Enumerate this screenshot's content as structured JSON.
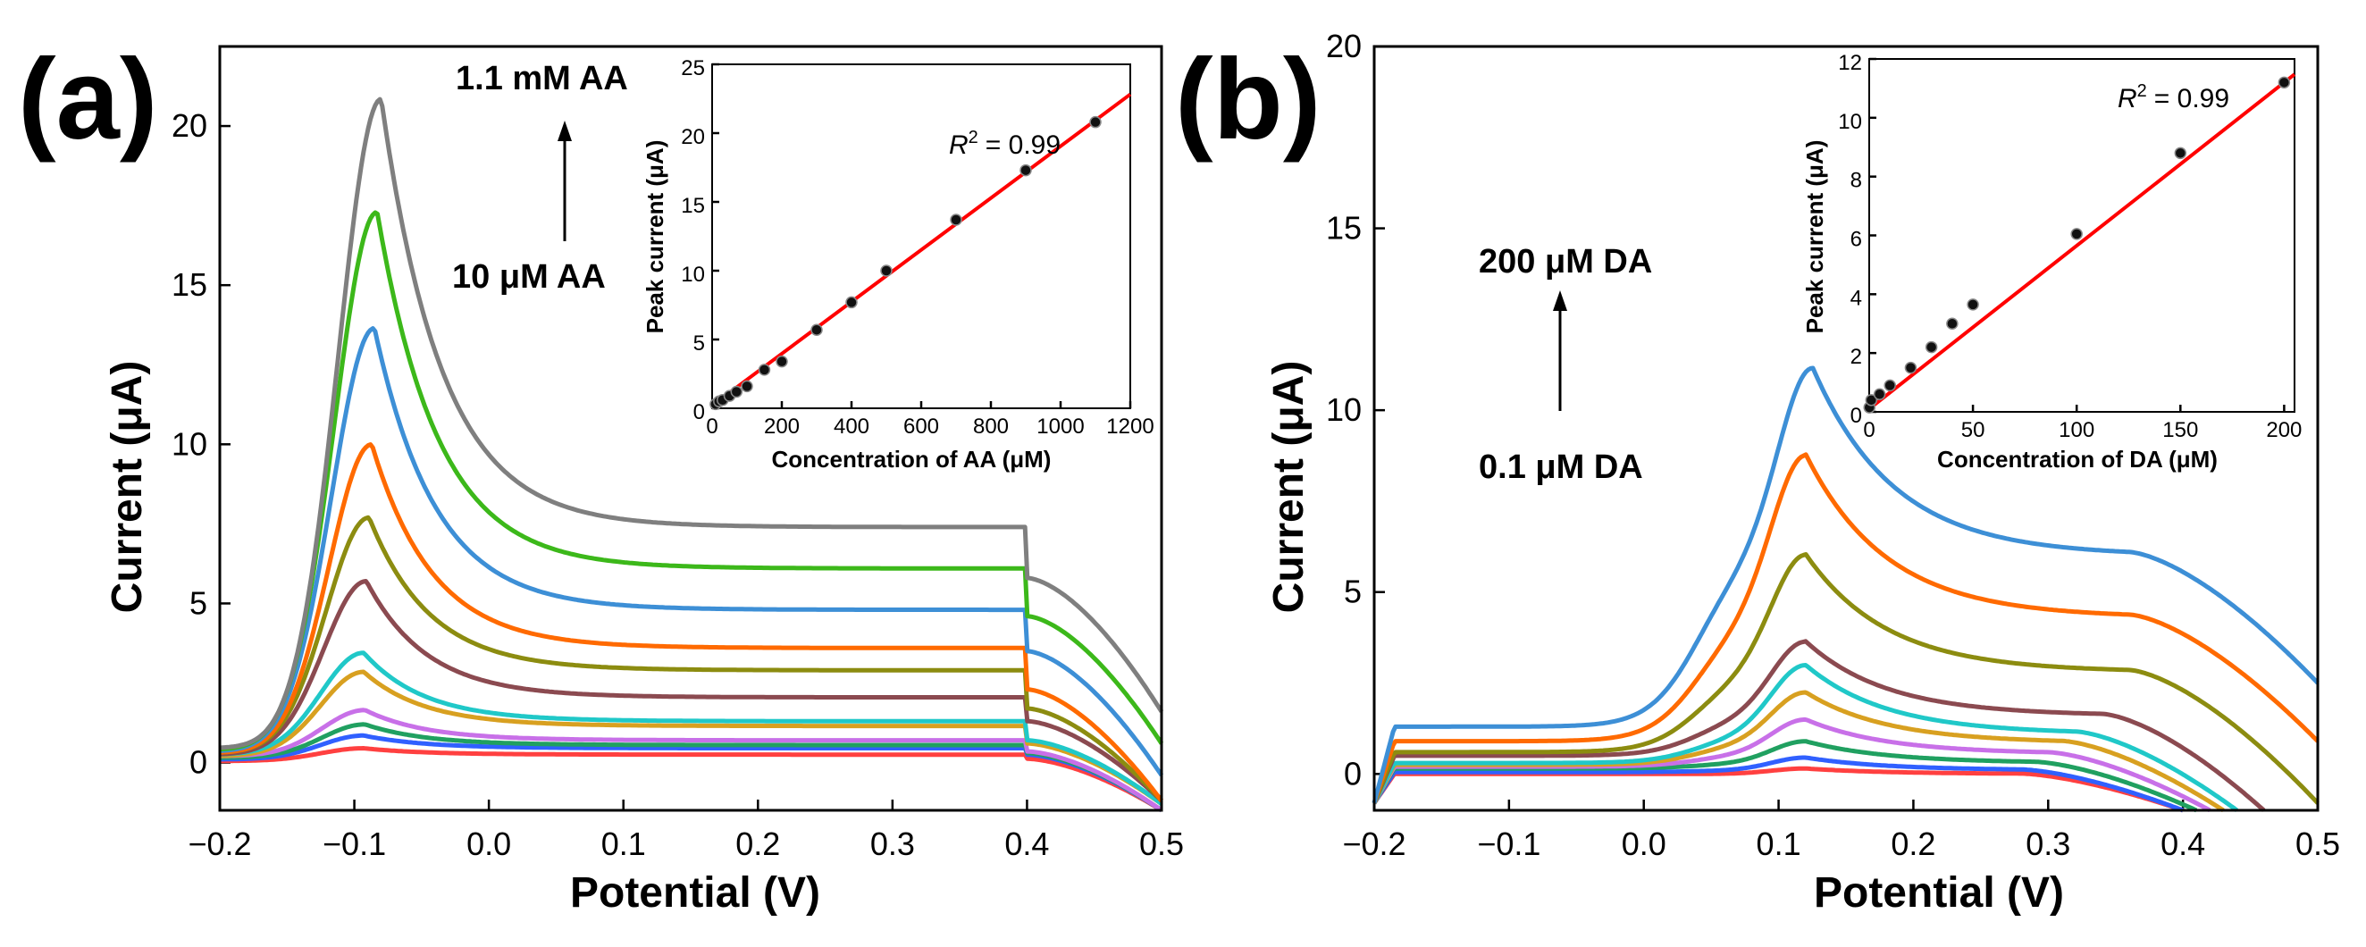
{
  "chart_data": [
    {
      "type": "line",
      "panel_label": "(a)",
      "xlabel": "Potential (V)",
      "ylabel": "Current (μA)",
      "xlim": [
        -0.2,
        0.5
      ],
      "ylim": [
        -1.5,
        22.5
      ],
      "xticks": [
        -0.2,
        -0.1,
        0.0,
        0.1,
        0.2,
        0.3,
        0.4,
        0.5
      ],
      "xtick_labels": [
        "−0.2",
        "−0.1",
        "0.0",
        "0.1",
        "0.2",
        "0.3",
        "0.4",
        "0.5"
      ],
      "yticks": [
        0,
        5,
        10,
        15,
        20
      ],
      "ytick_labels": [
        "0",
        "5",
        "10",
        "15",
        "20"
      ],
      "annotations": {
        "top": "1.1 mM AA",
        "bottom": "10 μM AA"
      },
      "series": [
        {
          "name": "s1",
          "color": "#ff4040",
          "peak_x": -0.093,
          "peak_y": 0.45,
          "base": 0.1,
          "shoulder": 0.3,
          "mid": 0.25,
          "late": 0.12,
          "end": -1.5,
          "start": 0.05
        },
        {
          "name": "s2",
          "color": "#3060ff",
          "peak_x": -0.093,
          "peak_y": 0.85,
          "base": 0.25,
          "shoulder": 0.6,
          "mid": 0.45,
          "late": 0.25,
          "end": -1.5,
          "start": 0.1
        },
        {
          "name": "s3",
          "color": "#20a060",
          "peak_x": -0.092,
          "peak_y": 1.2,
          "base": 0.3,
          "shoulder": 0.75,
          "mid": 0.55,
          "late": 0.3,
          "end": -1.5,
          "start": 0.15
        },
        {
          "name": "s4",
          "color": "#c870e8",
          "peak_x": -0.092,
          "peak_y": 1.65,
          "base": 0.35,
          "shoulder": 0.95,
          "mid": 0.7,
          "late": 0.35,
          "end": -1.5,
          "start": 0.2
        },
        {
          "name": "s5",
          "color": "#d8a020",
          "peak_x": -0.093,
          "peak_y": 2.85,
          "base": 0.4,
          "shoulder": 1.5,
          "mid": 1.15,
          "late": 0.6,
          "end": -1.3,
          "start": 0.2
        },
        {
          "name": "s6",
          "color": "#20c8c8",
          "peak_x": -0.093,
          "peak_y": 3.45,
          "base": 0.45,
          "shoulder": 1.8,
          "mid": 1.3,
          "late": 0.7,
          "end": -1.3,
          "start": 0.25
        },
        {
          "name": "s7",
          "color": "#8b4a50",
          "peak_x": -0.091,
          "peak_y": 5.7,
          "base": 0.5,
          "shoulder": 2.85,
          "mid": 2.05,
          "late": 1.3,
          "end": -1.2,
          "start": 0.25
        },
        {
          "name": "s8",
          "color": "#8c8c10",
          "peak_x": -0.089,
          "peak_y": 7.7,
          "base": 0.5,
          "shoulder": 3.9,
          "mid": 2.9,
          "late": 1.7,
          "end": -1.2,
          "start": 0.3
        },
        {
          "name": "s9",
          "color": "#ff6a00",
          "peak_x": -0.087,
          "peak_y": 10.0,
          "base": 0.5,
          "shoulder": 5.0,
          "mid": 3.6,
          "late": 2.3,
          "end": -1.2,
          "start": 0.3
        },
        {
          "name": "s10",
          "color": "#3d8fd6",
          "peak_x": -0.085,
          "peak_y": 13.65,
          "base": 0.5,
          "shoulder": 6.7,
          "mid": 4.8,
          "late": 3.5,
          "end": -0.4,
          "start": 0.35
        },
        {
          "name": "s11",
          "color": "#3cb81a",
          "peak_x": -0.083,
          "peak_y": 17.3,
          "base": 0.5,
          "shoulder": 8.7,
          "mid": 6.1,
          "late": 4.6,
          "end": 0.6,
          "start": 0.4
        },
        {
          "name": "s12",
          "color": "#7f7f7f",
          "peak_x": -0.08,
          "peak_y": 20.85,
          "base": 0.5,
          "shoulder": 11.0,
          "mid": 7.4,
          "late": 5.8,
          "end": 1.6,
          "start": 0.45
        }
      ],
      "inset": {
        "type": "scatter",
        "xlabel": "Concentration of AA (μM)",
        "ylabel": "Peak current (μA)",
        "xlim": [
          0,
          1200
        ],
        "ylim": [
          0,
          25
        ],
        "xticks": [
          0,
          200,
          400,
          600,
          800,
          1000,
          1200
        ],
        "xtick_labels": [
          "0",
          "200",
          "400",
          "600",
          "800",
          "1000",
          "1200"
        ],
        "yticks": [
          0,
          5,
          10,
          15,
          20,
          25
        ],
        "ytick_labels": [
          "0",
          "5",
          "10",
          "15",
          "20",
          "25"
        ],
        "r2_label": "R",
        "r2_value": "= 0.99",
        "fit": {
          "slope": 0.01885,
          "intercept": 0.2,
          "color": "#ff0000"
        },
        "points": {
          "x": [
            10,
            20,
            30,
            50,
            70,
            100,
            150,
            200,
            300,
            400,
            500,
            700,
            900,
            1100
          ],
          "y": [
            0.3,
            0.5,
            0.6,
            0.9,
            1.2,
            1.6,
            2.8,
            3.4,
            5.7,
            7.7,
            10.0,
            13.7,
            17.3,
            20.8
          ]
        }
      }
    },
    {
      "type": "line",
      "panel_label": "(b)",
      "xlabel": "Potential (V)",
      "ylabel": "Current (μA)",
      "xlim": [
        -0.2,
        0.5
      ],
      "ylim": [
        -1.0,
        20.0
      ],
      "xticks": [
        -0.2,
        -0.1,
        0.0,
        0.1,
        0.2,
        0.3,
        0.4,
        0.5
      ],
      "xtick_labels": [
        "−0.2",
        "−0.1",
        "0.0",
        "0.1",
        "0.2",
        "0.3",
        "0.4",
        "0.5"
      ],
      "yticks": [
        0,
        5,
        10,
        15,
        20
      ],
      "ytick_labels": [
        "0",
        "5",
        "10",
        "15",
        "20"
      ],
      "annotations": {
        "top": "200 μM DA",
        "bottom": "0.1 μM DA"
      },
      "series": [
        {
          "name": "s1",
          "color": "#ff4040",
          "peak_x": 0.12,
          "peak_y": 0.15,
          "base": 0.0,
          "shoulder": 0.0,
          "end": -1.0,
          "end_x": 0.4,
          "start": -0.8
        },
        {
          "name": "s2",
          "color": "#3060ff",
          "peak_x": 0.12,
          "peak_y": 0.45,
          "base": 0.05,
          "shoulder": 0.1,
          "end": -1.0,
          "end_x": 0.4,
          "start": -0.8
        },
        {
          "name": "s3",
          "color": "#20a060",
          "peak_x": 0.12,
          "peak_y": 0.9,
          "base": 0.15,
          "shoulder": 0.3,
          "end": -1.0,
          "end_x": 0.41,
          "start": -0.8
        },
        {
          "name": "s4",
          "color": "#c870e8",
          "peak_x": 0.12,
          "peak_y": 1.5,
          "base": 0.2,
          "shoulder": 0.55,
          "end": -1.0,
          "end_x": 0.42,
          "start": -0.8
        },
        {
          "name": "s5",
          "color": "#d8a020",
          "peak_x": 0.12,
          "peak_y": 2.25,
          "base": 0.25,
          "shoulder": 0.85,
          "end": -1.0,
          "end_x": 0.43,
          "start": -0.8
        },
        {
          "name": "s6",
          "color": "#20c8c8",
          "peak_x": 0.12,
          "peak_y": 3.0,
          "base": 0.3,
          "shoulder": 1.1,
          "end": -1.0,
          "end_x": 0.44,
          "start": -0.8
        },
        {
          "name": "s7",
          "color": "#8b4a50",
          "peak_x": 0.12,
          "peak_y": 3.65,
          "base": 0.5,
          "shoulder": 1.6,
          "end": -1.0,
          "end_x": 0.46,
          "start": -0.8
        },
        {
          "name": "s8",
          "color": "#8c8c10",
          "peak_x": 0.12,
          "peak_y": 6.05,
          "base": 0.6,
          "shoulder": 2.8,
          "end": -0.8,
          "end_x": 0.5,
          "start": -0.8
        },
        {
          "name": "s9",
          "color": "#ff6a00",
          "peak_x": 0.12,
          "peak_y": 8.8,
          "base": 0.9,
          "shoulder": 4.3,
          "end": 0.9,
          "end_x": 0.5,
          "start": -0.8
        },
        {
          "name": "s10",
          "color": "#3d8fd6",
          "peak_x": 0.125,
          "peak_y": 11.2,
          "base": 1.3,
          "shoulder": 6.0,
          "end": 2.5,
          "end_x": 0.5,
          "start": -0.8
        }
      ],
      "inset": {
        "type": "scatter",
        "xlabel": "Concentration of DA (μM)",
        "ylabel": "Peak current (μA)",
        "xlim": [
          0,
          205
        ],
        "ylim": [
          0,
          12
        ],
        "xticks": [
          0,
          50,
          100,
          150,
          200
        ],
        "xtick_labels": [
          "0",
          "50",
          "100",
          "150",
          "200"
        ],
        "yticks": [
          0,
          2,
          4,
          6,
          8,
          10,
          12
        ],
        "ytick_labels": [
          "0",
          "2",
          "4",
          "6",
          "8",
          "10",
          "12"
        ],
        "r2_label": "R",
        "r2_value": "= 0.99",
        "fit": {
          "slope": 0.0555,
          "intercept": 0.1,
          "color": "#ff0000"
        },
        "points": {
          "x": [
            0.1,
            1,
            5,
            10,
            20,
            30,
            40,
            50,
            100,
            150,
            200
          ],
          "y": [
            0.15,
            0.4,
            0.6,
            0.9,
            1.5,
            2.2,
            3.0,
            3.65,
            6.05,
            8.8,
            11.2
          ]
        }
      }
    }
  ]
}
